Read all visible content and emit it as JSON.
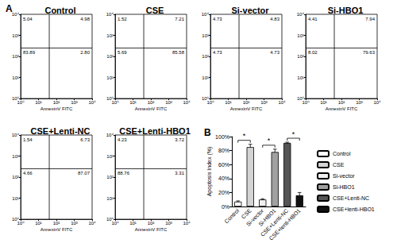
{
  "panel_labels": [
    "A",
    "B"
  ],
  "chart_data": [
    {
      "type": "scatter",
      "title": "Control",
      "xlabel": "AnnexinV FITC",
      "log": true,
      "xlim": [
        1,
        10000
      ],
      "ylim": [
        1,
        10000
      ],
      "xticks": [
        {
          "value": 1,
          "label": "10⁰"
        },
        {
          "value": 10,
          "label": "10¹"
        },
        {
          "value": 100,
          "label": "10²"
        },
        {
          "value": 1000,
          "label": "10³"
        },
        {
          "value": 10000,
          "label": "10⁴"
        }
      ],
      "yticks": [
        {
          "value": 1,
          "label": "10⁰"
        },
        {
          "value": 10,
          "label": "10¹"
        },
        {
          "value": 100,
          "label": "10²"
        },
        {
          "value": 1000,
          "label": "10³"
        },
        {
          "value": 10000,
          "label": "10⁴"
        }
      ],
      "gate": [
        40,
        250
      ],
      "quadrants": [
        {
          "position": "upper_left",
          "value": 5.04,
          "label": "5.04"
        },
        {
          "position": "upper_right",
          "value": 4.98,
          "label": "4.98"
        },
        {
          "position": "lower_left",
          "value": 83.89,
          "label": "83.89"
        },
        {
          "position": "lower_right",
          "value": 2.8,
          "label": "2.80"
        }
      ]
    },
    {
      "type": "scatter",
      "title": "CSE",
      "xlabel": "AnnexinV FITC",
      "log": true,
      "xlim": [
        1,
        10000
      ],
      "ylim": [
        1,
        10000
      ],
      "xticks": [
        {
          "value": 1,
          "label": "10⁰"
        },
        {
          "value": 10,
          "label": "10¹"
        },
        {
          "value": 100,
          "label": "10²"
        },
        {
          "value": 1000,
          "label": "10³"
        },
        {
          "value": 10000,
          "label": "10⁴"
        }
      ],
      "yticks": [
        {
          "value": 1,
          "label": "10⁰"
        },
        {
          "value": 10,
          "label": "10¹"
        },
        {
          "value": 100,
          "label": "10²"
        },
        {
          "value": 1000,
          "label": "10³"
        },
        {
          "value": 10000,
          "label": "10⁴"
        }
      ],
      "gate": [
        40,
        250
      ],
      "quadrants": [
        {
          "position": "upper_left",
          "value": 1.52,
          "label": "1.52"
        },
        {
          "position": "upper_right",
          "value": 7.21,
          "label": "7.21"
        },
        {
          "position": "lower_left",
          "value": 5.69,
          "label": "5.69"
        },
        {
          "position": "lower_right",
          "value": 85.58,
          "label": "85.58"
        }
      ]
    },
    {
      "type": "scatter",
      "title": "Si-vector",
      "xlabel": "AnnexinV FITC",
      "log": true,
      "xlim": [
        1,
        10000
      ],
      "ylim": [
        1,
        10000
      ],
      "xticks": [
        {
          "value": 1,
          "label": "10⁰"
        },
        {
          "value": 10,
          "label": "10¹"
        },
        {
          "value": 100,
          "label": "10²"
        },
        {
          "value": 1000,
          "label": "10³"
        },
        {
          "value": 10000,
          "label": "10⁴"
        }
      ],
      "yticks": [
        {
          "value": 1,
          "label": "10⁰"
        },
        {
          "value": 10,
          "label": "10¹"
        },
        {
          "value": 100,
          "label": "10²"
        },
        {
          "value": 1000,
          "label": "10³"
        },
        {
          "value": 10000,
          "label": "10⁴"
        }
      ],
      "gate": [
        40,
        250
      ],
      "quadrants": [
        {
          "position": "upper_left",
          "value": 4.73,
          "label": "4.73"
        },
        {
          "position": "upper_right",
          "value": 4.83,
          "label": "4.83"
        },
        {
          "position": "lower_left",
          "value": 4.73,
          "label": "4.73"
        },
        {
          "position": "lower_right",
          "value": 4.73,
          "label": "4.73"
        }
      ]
    },
    {
      "type": "scatter",
      "title": "Si-HBO1",
      "xlabel": "AnnexinV FITC",
      "log": true,
      "xlim": [
        1,
        10000
      ],
      "ylim": [
        1,
        10000
      ],
      "xticks": [
        {
          "value": 1,
          "label": "10⁰"
        },
        {
          "value": 10,
          "label": "10¹"
        },
        {
          "value": 100,
          "label": "10²"
        },
        {
          "value": 1000,
          "label": "10³"
        },
        {
          "value": 10000,
          "label": "10⁴"
        }
      ],
      "yticks": [
        {
          "value": 1,
          "label": "10⁰"
        },
        {
          "value": 10,
          "label": "10¹"
        },
        {
          "value": 100,
          "label": "10²"
        },
        {
          "value": 1000,
          "label": "10³"
        },
        {
          "value": 10000,
          "label": "10⁴"
        }
      ],
      "gate": [
        40,
        250
      ],
      "quadrants": [
        {
          "position": "upper_left",
          "value": 4.41,
          "label": "4.41"
        },
        {
          "position": "upper_right",
          "value": 7.94,
          "label": "7.94"
        },
        {
          "position": "lower_left",
          "value": 8.02,
          "label": "8.02"
        },
        {
          "position": "lower_right",
          "value": 79.63,
          "label": "79.63"
        }
      ]
    },
    {
      "type": "scatter",
      "title": "CSE+Lenti-NC",
      "xlabel": "AnnexinV FITC",
      "log": true,
      "xlim": [
        1,
        10000
      ],
      "ylim": [
        1,
        10000
      ],
      "xticks": [
        {
          "value": 1,
          "label": "10⁰"
        },
        {
          "value": 10,
          "label": "10¹"
        },
        {
          "value": 100,
          "label": "10²"
        },
        {
          "value": 1000,
          "label": "10³"
        },
        {
          "value": 10000,
          "label": "10⁴"
        }
      ],
      "yticks": [
        {
          "value": 1,
          "label": "10⁰"
        },
        {
          "value": 10,
          "label": "10¹"
        },
        {
          "value": 100,
          "label": "10²"
        },
        {
          "value": 1000,
          "label": "10³"
        },
        {
          "value": 10000,
          "label": "10⁴"
        }
      ],
      "gate": [
        40,
        250
      ],
      "quadrants": [
        {
          "position": "upper_left",
          "value": 1.54,
          "label": "1.54"
        },
        {
          "position": "upper_right",
          "value": 6.73,
          "label": "6.73"
        },
        {
          "position": "lower_left",
          "value": 4.66,
          "label": "4.66"
        },
        {
          "position": "lower_right",
          "value": 87.07,
          "label": "87.07"
        }
      ]
    },
    {
      "type": "scatter",
      "title": "CSE+Lenti-HBO1",
      "xlabel": "AnnexinV FITC",
      "log": true,
      "xlim": [
        1,
        10000
      ],
      "ylim": [
        1,
        10000
      ],
      "xticks": [
        {
          "value": 1,
          "label": "10⁰"
        },
        {
          "value": 10,
          "label": "10¹"
        },
        {
          "value": 100,
          "label": "10²"
        },
        {
          "value": 1000,
          "label": "10³"
        },
        {
          "value": 10000,
          "label": "10⁴"
        }
      ],
      "yticks": [
        {
          "value": 1,
          "label": "10⁰"
        },
        {
          "value": 10,
          "label": "10¹"
        },
        {
          "value": 100,
          "label": "10²"
        },
        {
          "value": 1000,
          "label": "10³"
        },
        {
          "value": 10000,
          "label": "10⁴"
        }
      ],
      "gate": [
        40,
        250
      ],
      "quadrants": [
        {
          "position": "upper_left",
          "value": 4.23,
          "label": "4.23"
        },
        {
          "position": "upper_right",
          "value": 3.72,
          "label": "3.72"
        },
        {
          "position": "lower_left",
          "value": 88.76,
          "label": "88.76"
        },
        {
          "position": "lower_right",
          "value": 3.31,
          "label": "3.31"
        }
      ]
    },
    {
      "type": "bar",
      "ylabel": "Apoptosis Index (%)",
      "categories": [
        "Control",
        "CSE",
        "Si-vector",
        "Si-HBO1",
        "CSE+Lenti-NC",
        "CSE+lenti-HBO1"
      ],
      "values": [
        7,
        85,
        10,
        78,
        91,
        16
      ],
      "errors": [
        1,
        4,
        1,
        4,
        1,
        4
      ],
      "colors": [
        "#ffffff",
        "#d4d4d4",
        "#f0f0f0",
        "#a0a0a0",
        "#555555",
        "#111111"
      ],
      "ylim": [
        0,
        100
      ],
      "yticks": [
        {
          "value": 0,
          "label": "0%"
        },
        {
          "value": 20,
          "label": "20%"
        },
        {
          "value": 40,
          "label": "40%"
        },
        {
          "value": 60,
          "label": "60%"
        },
        {
          "value": 80,
          "label": "80%"
        },
        {
          "value": 100,
          "label": "100%"
        }
      ],
      "legend": "right",
      "annotations": [
        {
          "text": "*",
          "from": 0,
          "to": 1
        },
        {
          "text": "*",
          "from": 2,
          "to": 3
        },
        {
          "text": "*",
          "from": 4,
          "to": 5
        }
      ]
    }
  ]
}
